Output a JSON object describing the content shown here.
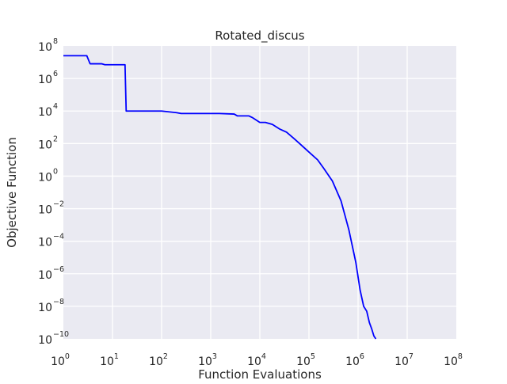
{
  "chart_data": {
    "type": "line",
    "title": "Rotated_discus",
    "xlabel": "Function Evaluations",
    "ylabel": "Objective Function",
    "xscale": "log",
    "yscale": "log",
    "xlim": [
      1,
      100000000
    ],
    "ylim": [
      1e-10,
      100000000
    ],
    "grid": true,
    "legend": "none",
    "x_ticks": [
      {
        "base": "10",
        "exp": "0"
      },
      {
        "base": "10",
        "exp": "1"
      },
      {
        "base": "10",
        "exp": "2"
      },
      {
        "base": "10",
        "exp": "3"
      },
      {
        "base": "10",
        "exp": "4"
      },
      {
        "base": "10",
        "exp": "5"
      },
      {
        "base": "10",
        "exp": "6"
      },
      {
        "base": "10",
        "exp": "7"
      },
      {
        "base": "10",
        "exp": "8"
      }
    ],
    "y_ticks": [
      {
        "base": "10",
        "exp": "−10"
      },
      {
        "base": "10",
        "exp": "−8"
      },
      {
        "base": "10",
        "exp": "−6"
      },
      {
        "base": "10",
        "exp": "−4"
      },
      {
        "base": "10",
        "exp": "−2"
      },
      {
        "base": "10",
        "exp": "0"
      },
      {
        "base": "10",
        "exp": "2"
      },
      {
        "base": "10",
        "exp": "4"
      },
      {
        "base": "10",
        "exp": "6"
      },
      {
        "base": "10",
        "exp": "8"
      }
    ],
    "series": [
      {
        "color": "#0000ff",
        "x": [
          1,
          3,
          3.5,
          6,
          7,
          14,
          18,
          19,
          20,
          100,
          200,
          250,
          300,
          600,
          1500,
          3000,
          3500,
          6000,
          7000,
          10000,
          13000,
          18000,
          25000,
          35000,
          50000,
          70000,
          100000,
          150000,
          200000,
          300000,
          450000,
          650000,
          900000,
          1100000,
          1300000,
          1500000,
          1700000,
          1900000,
          2100000,
          2300000
        ],
        "y": [
          25000000,
          25000000,
          8000000,
          8000000,
          7000000,
          7000000,
          7000000,
          10000,
          10000,
          10000,
          8000,
          7000,
          7000,
          7000,
          7000,
          6500,
          5000,
          5000,
          4000,
          2000,
          2000,
          1500,
          800,
          500,
          200,
          80,
          30,
          10,
          3,
          0.5,
          0.03,
          0.0005,
          5e-06,
          1e-07,
          1e-08,
          5e-09,
          1e-09,
          4e-10,
          1.5e-10,
          1e-10
        ]
      }
    ]
  }
}
